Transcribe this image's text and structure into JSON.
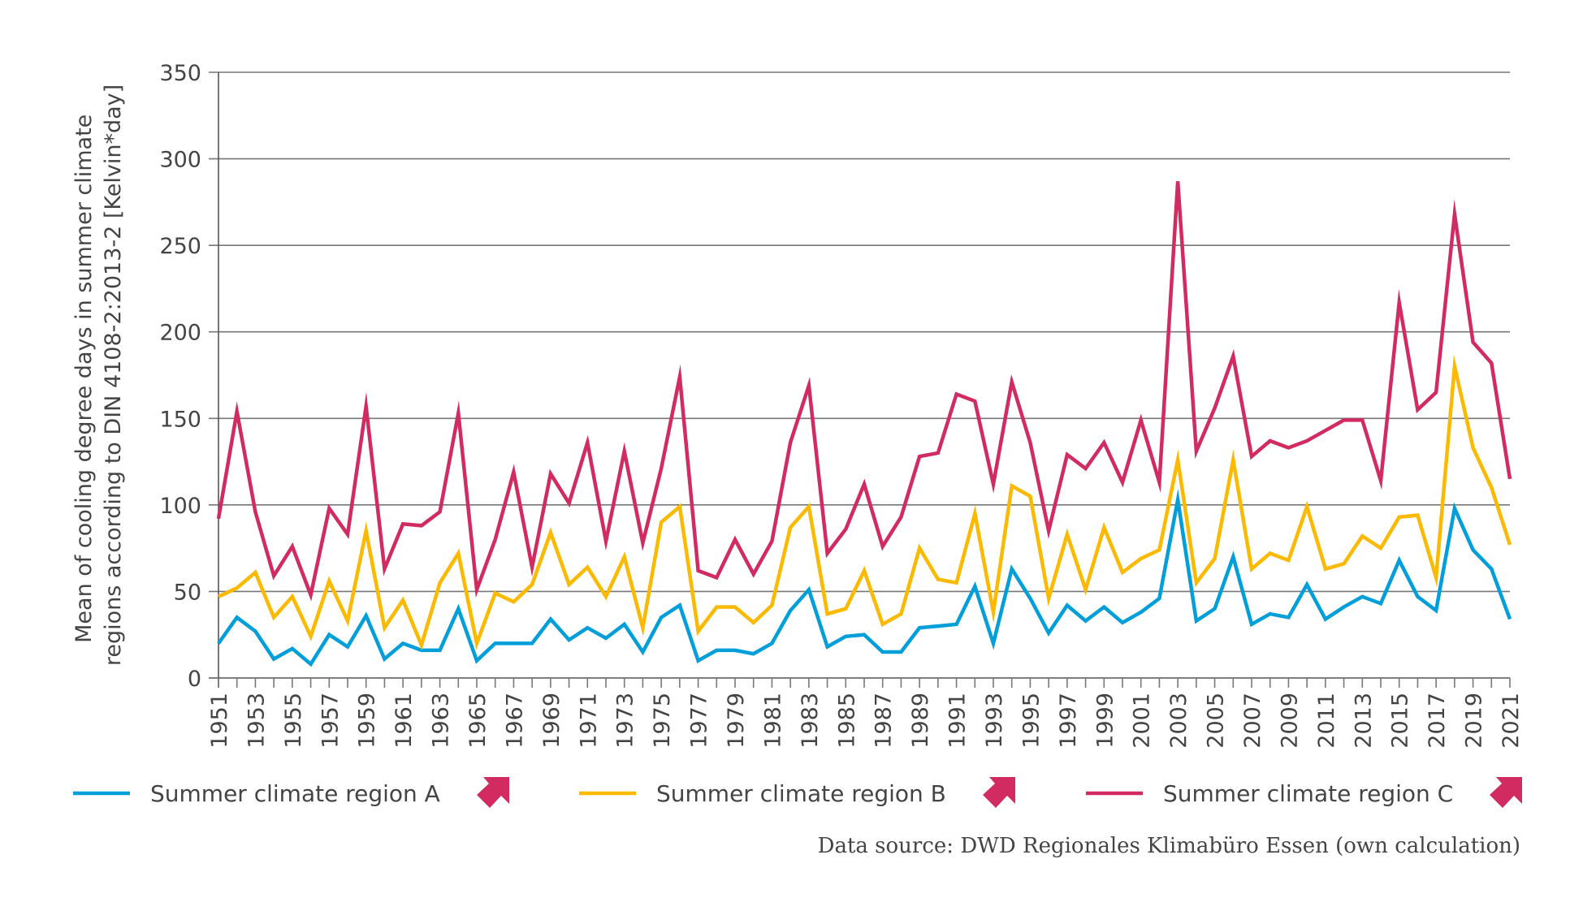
{
  "chart_data": {
    "type": "line",
    "title": "",
    "xlabel": "",
    "ylabel": "Mean of cooling degree days in summer climate regions according to DIN 4108-2:2013-2 [Kelvin*day]",
    "ylabel_lines": [
      "Mean of cooling degree days in summer climate",
      "regions according to DIN 4108-2:2013-2 [Kelvin*day]"
    ],
    "ylim": [
      0,
      350
    ],
    "yticks": [
      0,
      50,
      100,
      150,
      200,
      250,
      300,
      350
    ],
    "xlim": [
      1951,
      2021
    ],
    "xtick_labels": [
      "1951",
      "1953",
      "1955",
      "1957",
      "1959",
      "1961",
      "1963",
      "1965",
      "1967",
      "1969",
      "1971",
      "1973",
      "1975",
      "1977",
      "1979",
      "1981",
      "1983",
      "1985",
      "1987",
      "1989",
      "1991",
      "1993",
      "1995",
      "1997",
      "1999",
      "2001",
      "2003",
      "2005",
      "2007",
      "2009",
      "2011",
      "2013",
      "2015",
      "2017",
      "2019",
      "2021"
    ],
    "grid": "horizontal",
    "legend_position": "bottom",
    "x": [
      1951,
      1952,
      1953,
      1954,
      1955,
      1956,
      1957,
      1958,
      1959,
      1960,
      1961,
      1962,
      1963,
      1964,
      1965,
      1966,
      1967,
      1968,
      1969,
      1970,
      1971,
      1972,
      1973,
      1974,
      1975,
      1976,
      1977,
      1978,
      1979,
      1980,
      1981,
      1982,
      1983,
      1984,
      1985,
      1986,
      1987,
      1988,
      1989,
      1990,
      1991,
      1992,
      1993,
      1994,
      1995,
      1996,
      1997,
      1998,
      1999,
      2000,
      2001,
      2002,
      2003,
      2004,
      2005,
      2006,
      2007,
      2008,
      2009,
      2010,
      2011,
      2012,
      2013,
      2014,
      2015,
      2016,
      2017,
      2018,
      2019,
      2020,
      2021
    ],
    "series": [
      {
        "name": "Summer climate region A",
        "color": "#009fda",
        "values": [
          20,
          35,
          27,
          11,
          17,
          8,
          25,
          18,
          36,
          11,
          20,
          16,
          16,
          40,
          10,
          20,
          20,
          20,
          34,
          22,
          29,
          23,
          31,
          15,
          35,
          42,
          10,
          16,
          16,
          14,
          20,
          39,
          51,
          18,
          24,
          25,
          15,
          15,
          29,
          30,
          31,
          53,
          20,
          63,
          46,
          26,
          42,
          33,
          41,
          32,
          38,
          46,
          103,
          33,
          40,
          70,
          31,
          37,
          35,
          54,
          34,
          41,
          47,
          43,
          68,
          47,
          39,
          98,
          74,
          63,
          34
        ]
      },
      {
        "name": "Summer climate region B",
        "color": "#fbb900",
        "values": [
          47,
          52,
          61,
          35,
          47,
          24,
          56,
          33,
          85,
          29,
          45,
          19,
          55,
          72,
          20,
          49,
          44,
          54,
          84,
          54,
          64,
          47,
          70,
          29,
          90,
          99,
          27,
          41,
          41,
          32,
          42,
          87,
          99,
          37,
          40,
          62,
          31,
          37,
          75,
          57,
          55,
          95,
          38,
          111,
          105,
          46,
          83,
          51,
          87,
          61,
          69,
          74,
          126,
          55,
          69,
          126,
          63,
          72,
          68,
          99,
          63,
          66,
          82,
          75,
          93,
          94,
          58,
          180,
          133,
          110,
          77
        ]
      },
      {
        "name": "Summer climate region C",
        "color": "#d12b62",
        "values": [
          92,
          154,
          96,
          59,
          76,
          48,
          98,
          83,
          157,
          63,
          89,
          88,
          96,
          153,
          51,
          80,
          119,
          64,
          118,
          101,
          136,
          79,
          131,
          78,
          121,
          174,
          62,
          58,
          80,
          60,
          79,
          136,
          169,
          72,
          86,
          112,
          76,
          93,
          128,
          130,
          164,
          160,
          112,
          171,
          136,
          85,
          129,
          121,
          136,
          113,
          149,
          113,
          287,
          131,
          156,
          186,
          128,
          137,
          133,
          137,
          143,
          149,
          149,
          114,
          217,
          155,
          165,
          268,
          194,
          182,
          115
        ]
      }
    ],
    "legend_icon": "diagonal-up-right-arrow-icon",
    "legend_icon_color": "#d12b62",
    "source": "Data source: DWD Regionales Klimabüro Essen (own calculation)"
  }
}
